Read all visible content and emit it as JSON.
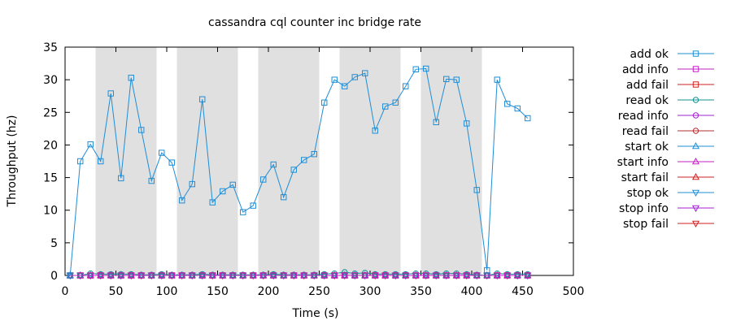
{
  "chart_data": {
    "type": "line",
    "title": "cassandra cql counter inc bridge rate",
    "xlabel": "Time (s)",
    "ylabel": "Throughput (hz)",
    "xlim": [
      0,
      500
    ],
    "ylim": [
      0,
      35
    ],
    "xticks": [
      0,
      50,
      100,
      150,
      200,
      250,
      300,
      350,
      400,
      450,
      500
    ],
    "yticks": [
      0,
      5,
      10,
      15,
      20,
      25,
      30,
      35
    ],
    "grid": false,
    "legend_position": "right",
    "shaded_intervals": [
      [
        30,
        90
      ],
      [
        110,
        170
      ],
      [
        190,
        250
      ],
      [
        270,
        330
      ],
      [
        350,
        410
      ]
    ],
    "shade_color": "#e0e0e0",
    "x": [
      5,
      15,
      25,
      35,
      45,
      55,
      65,
      75,
      85,
      95,
      105,
      115,
      125,
      135,
      145,
      155,
      165,
      175,
      185,
      195,
      205,
      215,
      225,
      235,
      245,
      255,
      265,
      275,
      285,
      295,
      305,
      315,
      325,
      335,
      345,
      355,
      365,
      375,
      385,
      395,
      405,
      415,
      425,
      435,
      445,
      455
    ],
    "series": [
      {
        "name": "add ok",
        "color": "#1f8dd6",
        "marker": "square",
        "values": [
          0,
          17.5,
          20.1,
          17.5,
          27.9,
          14.9,
          30.3,
          22.3,
          14.5,
          18.8,
          17.3,
          11.5,
          14,
          27,
          11.2,
          12.9,
          13.9,
          9.7,
          10.7,
          14.7,
          17,
          12,
          16.2,
          17.7,
          18.6,
          26.5,
          30,
          29,
          30.4,
          31,
          22.2,
          25.9,
          26.5,
          29,
          31.6,
          31.7,
          23.5,
          30.1,
          30,
          23.3,
          13.1,
          0.8,
          30,
          26.3,
          25.6,
          24.1
        ]
      },
      {
        "name": "add info",
        "color": "#c020c0",
        "marker": "square",
        "values": [
          0,
          0,
          0,
          0,
          0,
          0,
          0,
          0,
          0,
          0,
          0,
          0,
          0,
          0,
          0,
          0,
          0,
          0,
          0,
          0,
          0,
          0,
          0,
          0,
          0,
          0,
          0,
          0,
          0,
          0,
          0,
          0,
          0,
          0,
          0,
          0,
          0,
          0,
          0,
          0,
          0,
          0,
          0,
          0,
          0,
          0
        ]
      },
      {
        "name": "add fail",
        "color": "#d02020",
        "marker": "square",
        "values": [
          0,
          0,
          0,
          0,
          0,
          0,
          0,
          0,
          0,
          0,
          0,
          0,
          0,
          0,
          0,
          0,
          0,
          0,
          0,
          0,
          0,
          0,
          0,
          0,
          0,
          0,
          0,
          0,
          0,
          0,
          0,
          0,
          0,
          0,
          0,
          0,
          0,
          0,
          0,
          0,
          0,
          0,
          0,
          0,
          0,
          0
        ]
      },
      {
        "name": "read ok",
        "color": "#109090",
        "marker": "circle",
        "values": [
          0,
          0,
          0.3,
          0.2,
          0.2,
          0.2,
          0.2,
          0.1,
          0.1,
          0.2,
          0.1,
          0.1,
          0.1,
          0.2,
          0.1,
          0.1,
          0.1,
          0.1,
          0.1,
          0.1,
          0.2,
          0.1,
          0.1,
          0.1,
          0.1,
          0.2,
          0.3,
          0.5,
          0.3,
          0.4,
          0.2,
          0.2,
          0.2,
          0.2,
          0.3,
          0.3,
          0.2,
          0.3,
          0.3,
          0.2,
          0.1,
          0,
          0.3,
          0.2,
          0.2,
          0.2
        ]
      },
      {
        "name": "read info",
        "color": "#a020d0",
        "marker": "circle",
        "values": [
          0,
          0,
          0,
          0,
          0,
          0,
          0,
          0,
          0,
          0,
          0,
          0,
          0,
          0,
          0,
          0,
          0,
          0,
          0,
          0,
          0,
          0,
          0,
          0,
          0,
          0,
          0,
          0,
          0,
          0,
          0,
          0,
          0,
          0,
          0,
          0,
          0,
          0,
          0,
          0,
          0,
          0,
          0,
          0,
          0,
          0
        ]
      },
      {
        "name": "read fail",
        "color": "#b03030",
        "marker": "circle",
        "values": [
          0,
          0,
          0,
          0,
          0,
          0,
          0,
          0,
          0,
          0,
          0,
          0,
          0,
          0,
          0,
          0,
          0,
          0,
          0,
          0,
          0,
          0,
          0,
          0,
          0,
          0,
          0,
          0,
          0,
          0,
          0,
          0,
          0,
          0,
          0,
          0,
          0,
          0,
          0,
          0,
          0,
          0,
          0,
          0,
          0,
          0
        ]
      },
      {
        "name": "start ok",
        "color": "#1f8dd6",
        "marker": "triangle-up",
        "values": [
          0,
          0,
          0,
          0,
          0,
          0,
          0,
          0,
          0,
          0,
          0,
          0,
          0,
          0,
          0,
          0,
          0,
          0,
          0,
          0,
          0,
          0,
          0,
          0,
          0,
          0,
          0,
          0,
          0,
          0,
          0,
          0,
          0,
          0,
          0,
          0,
          0,
          0,
          0,
          0,
          0,
          0,
          0,
          0,
          0,
          0
        ]
      },
      {
        "name": "start info",
        "color": "#c020c0",
        "marker": "triangle-up",
        "values": [
          0,
          0,
          0,
          0,
          0,
          0,
          0,
          0,
          0,
          0,
          0,
          0,
          0,
          0,
          0,
          0,
          0,
          0,
          0,
          0,
          0,
          0,
          0,
          0,
          0,
          0,
          0,
          0,
          0,
          0,
          0,
          0,
          0,
          0,
          0,
          0,
          0,
          0,
          0,
          0,
          0,
          0,
          0,
          0,
          0,
          0
        ]
      },
      {
        "name": "start fail",
        "color": "#d02020",
        "marker": "triangle-up",
        "values": [
          0,
          0,
          0,
          0,
          0,
          0,
          0,
          0,
          0,
          0,
          0,
          0,
          0,
          0,
          0,
          0,
          0,
          0,
          0,
          0,
          0,
          0,
          0,
          0,
          0,
          0,
          0,
          0,
          0,
          0,
          0,
          0,
          0,
          0,
          0,
          0,
          0,
          0,
          0,
          0,
          0,
          0,
          0,
          0,
          0,
          0
        ]
      },
      {
        "name": "stop ok",
        "color": "#1f8dd6",
        "marker": "triangle-down",
        "values": [
          0,
          0,
          0,
          0,
          0,
          0,
          0,
          0,
          0,
          0,
          0,
          0,
          0,
          0,
          0,
          0,
          0,
          0,
          0,
          0,
          0,
          0,
          0,
          0,
          0,
          0,
          0,
          0,
          0,
          0,
          0,
          0,
          0,
          0,
          0,
          0,
          0,
          0,
          0,
          0,
          0,
          0,
          0,
          0,
          0,
          0
        ]
      },
      {
        "name": "stop info",
        "color": "#a020d0",
        "marker": "triangle-down",
        "values": [
          0,
          0,
          0,
          0,
          0,
          0,
          0,
          0,
          0,
          0,
          0,
          0,
          0,
          0,
          0,
          0,
          0,
          0,
          0,
          0,
          0,
          0,
          0,
          0,
          0,
          0,
          0,
          0,
          0,
          0,
          0,
          0,
          0,
          0,
          0,
          0,
          0,
          0,
          0,
          0,
          0,
          0,
          0,
          0,
          0,
          0
        ]
      },
      {
        "name": "stop fail",
        "color": "#d02020",
        "marker": "triangle-down",
        "values": [
          0,
          0,
          0,
          0,
          0,
          0,
          0,
          0,
          0,
          0,
          0,
          0,
          0,
          0,
          0,
          0,
          0,
          0,
          0,
          0,
          0,
          0,
          0,
          0,
          0,
          0,
          0,
          0,
          0,
          0,
          0,
          0,
          0,
          0,
          0,
          0,
          0,
          0,
          0,
          0,
          0,
          0,
          0,
          0,
          0,
          0
        ]
      }
    ]
  }
}
